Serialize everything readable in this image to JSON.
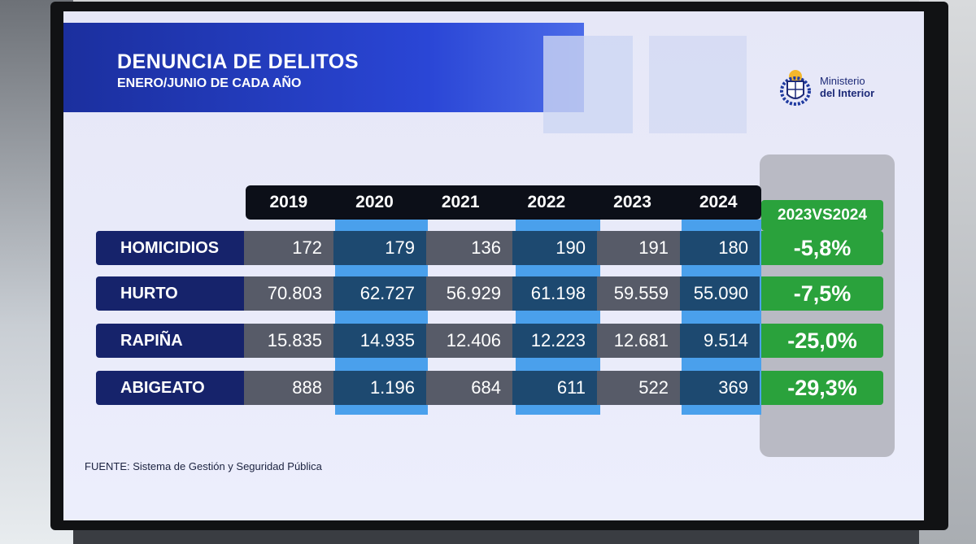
{
  "slide": {
    "title": "DENUNCIA DE DELITOS",
    "subtitle": "ENERO/JUNIO DE CADA AÑO",
    "logo": {
      "line1": "Ministerio",
      "line2": "del Interior"
    },
    "source": "FUENTE: Sistema de Gestión y Seguridad Pública"
  },
  "chart_data": {
    "type": "table",
    "title": "DENUNCIA DE DELITOS",
    "subtitle": "ENERO/JUNIO DE CADA AÑO",
    "columns": [
      "2019",
      "2020",
      "2021",
      "2022",
      "2023",
      "2024"
    ],
    "change_header": "2023VS2024",
    "rows": [
      {
        "label": "HOMICIDIOS",
        "values": [
          "172",
          "179",
          "136",
          "190",
          "191",
          "180"
        ],
        "change": "-5,8%"
      },
      {
        "label": "HURTO",
        "values": [
          "70.803",
          "62.727",
          "56.929",
          "61.198",
          "59.559",
          "55.090"
        ],
        "change": "-7,5%"
      },
      {
        "label": "RAPIÑA",
        "values": [
          "15.835",
          "14.935",
          "12.406",
          "12.223",
          "12.681",
          "9.514"
        ],
        "change": "-25,0%"
      },
      {
        "label": "ABIGEATO",
        "values": [
          "888",
          "1.196",
          "684",
          "611",
          "522",
          "369"
        ],
        "change": "-29,3%"
      }
    ],
    "colors": {
      "label_bg": "#16236b",
      "change_bg": "#2aa23c",
      "header_bg": "#0c0f18"
    }
  }
}
